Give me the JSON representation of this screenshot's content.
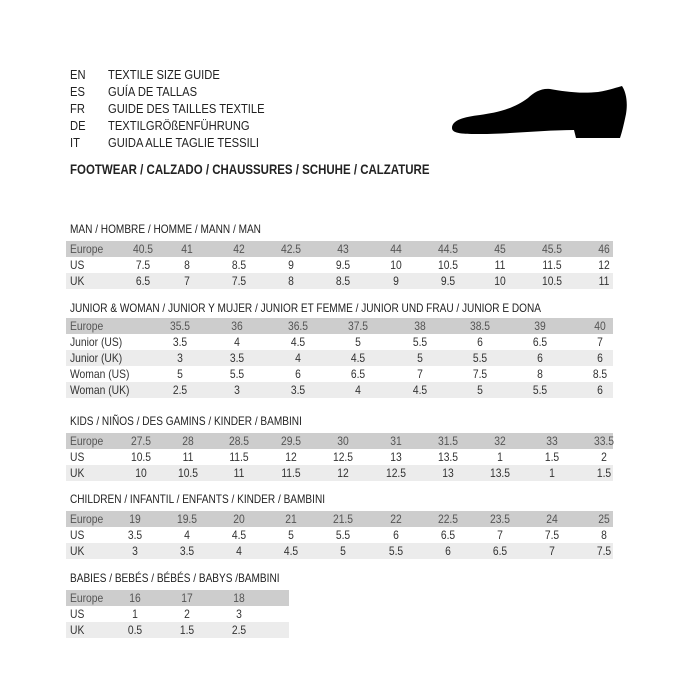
{
  "header": {
    "lines": [
      {
        "code": "EN",
        "name": "TEXTILE SIZE GUIDE"
      },
      {
        "code": "ES",
        "name": "GUÍA DE TALLAS"
      },
      {
        "code": "FR",
        "name": "GUIDE DES TAILLES TEXTILE"
      },
      {
        "code": "DE",
        "name": "TEXTILGRÖßENFÜHRUNG"
      },
      {
        "code": "IT",
        "name": "GUIDA ALLE TAGLIE TESSILI"
      }
    ],
    "footwear": "FOOTWEAR / CALZADO / CHAUSSURES / SCHUHE / CALZATURE",
    "icon": "shoe-silhouette-icon"
  },
  "sections": [
    {
      "title": "MAN / HOMBRE / HOMME / MANN / MAN",
      "rows": [
        {
          "label": "Europe",
          "values": [
            "40.5",
            "41",
            "42",
            "42.5",
            "43",
            "44",
            "44.5",
            "45",
            "45.5",
            "46"
          ]
        },
        {
          "label": "US",
          "values": [
            "7.5",
            "8",
            "8.5",
            "9",
            "9.5",
            "10",
            "10.5",
            "11",
            "11.5",
            "12"
          ]
        },
        {
          "label": "UK",
          "values": [
            "6.5",
            "7",
            "7.5",
            "8",
            "8.5",
            "9",
            "9.5",
            "10",
            "10.5",
            "11"
          ]
        }
      ]
    },
    {
      "title": "JUNIOR & WOMAN / JUNIOR Y MUJER / JUNIOR ET FEMME / JUNIOR UND FRAU / JUNIOR E DONA",
      "rows": [
        {
          "label": "Europe",
          "values": [
            "35.5",
            "36",
            "36.5",
            "37.5",
            "38",
            "38.5",
            "39",
            "40"
          ]
        },
        {
          "label": "Junior (US)",
          "values": [
            "3.5",
            "4",
            "4.5",
            "5",
            "5.5",
            "6",
            "6.5",
            "7"
          ]
        },
        {
          "label": "Junior (UK)",
          "values": [
            "3",
            "3.5",
            "4",
            "4.5",
            "5",
            "5.5",
            "6",
            "6"
          ]
        },
        {
          "label": "Woman (US)",
          "values": [
            "5",
            "5.5",
            "6",
            "6.5",
            "7",
            "7.5",
            "8",
            "8.5"
          ]
        },
        {
          "label": "Woman (UK)",
          "values": [
            "2.5",
            "3",
            "3.5",
            "4",
            "4.5",
            "5",
            "5.5",
            "6"
          ]
        }
      ]
    },
    {
      "title": "KIDS / NIÑOS / DES GAMINS / KINDER / BAMBINI",
      "rows": [
        {
          "label": "Europe",
          "values": [
            "27.5",
            "28",
            "28.5",
            "29.5",
            "30",
            "31",
            "31.5",
            "32",
            "33",
            "33.5"
          ]
        },
        {
          "label": "US",
          "values": [
            "10.5",
            "11",
            "11.5",
            "12",
            "12.5",
            "13",
            "13.5",
            "1",
            "1.5",
            "2"
          ]
        },
        {
          "label": "UK",
          "values": [
            "10",
            "10.5",
            "11",
            "11.5",
            "12",
            "12.5",
            "13",
            "13.5",
            "1",
            "1.5"
          ]
        }
      ]
    },
    {
      "title": "CHILDREN / INFANTIL / ENFANTS / KINDER / BAMBINI",
      "rows": [
        {
          "label": "Europe",
          "values": [
            "19",
            "19.5",
            "20",
            "21",
            "21.5",
            "22",
            "22.5",
            "23.5",
            "24",
            "25"
          ]
        },
        {
          "label": "US",
          "values": [
            "3.5",
            "4",
            "4.5",
            "5",
            "5.5",
            "6",
            "6.5",
            "7",
            "7.5",
            "8"
          ]
        },
        {
          "label": "UK",
          "values": [
            "3",
            "3.5",
            "4",
            "4.5",
            "5",
            "5.5",
            "6",
            "6.5",
            "7",
            "7.5"
          ]
        }
      ]
    },
    {
      "title": "BABIES  / BEBÉS / BÉBÉS / BABYS /BAMBINI",
      "rows": [
        {
          "label": "Europe",
          "values": [
            "16",
            "17",
            "18"
          ]
        },
        {
          "label": "US",
          "values": [
            "1",
            "2",
            "3"
          ]
        },
        {
          "label": "UK",
          "values": [
            "0.5",
            "1.5",
            "2.5"
          ]
        }
      ]
    }
  ]
}
